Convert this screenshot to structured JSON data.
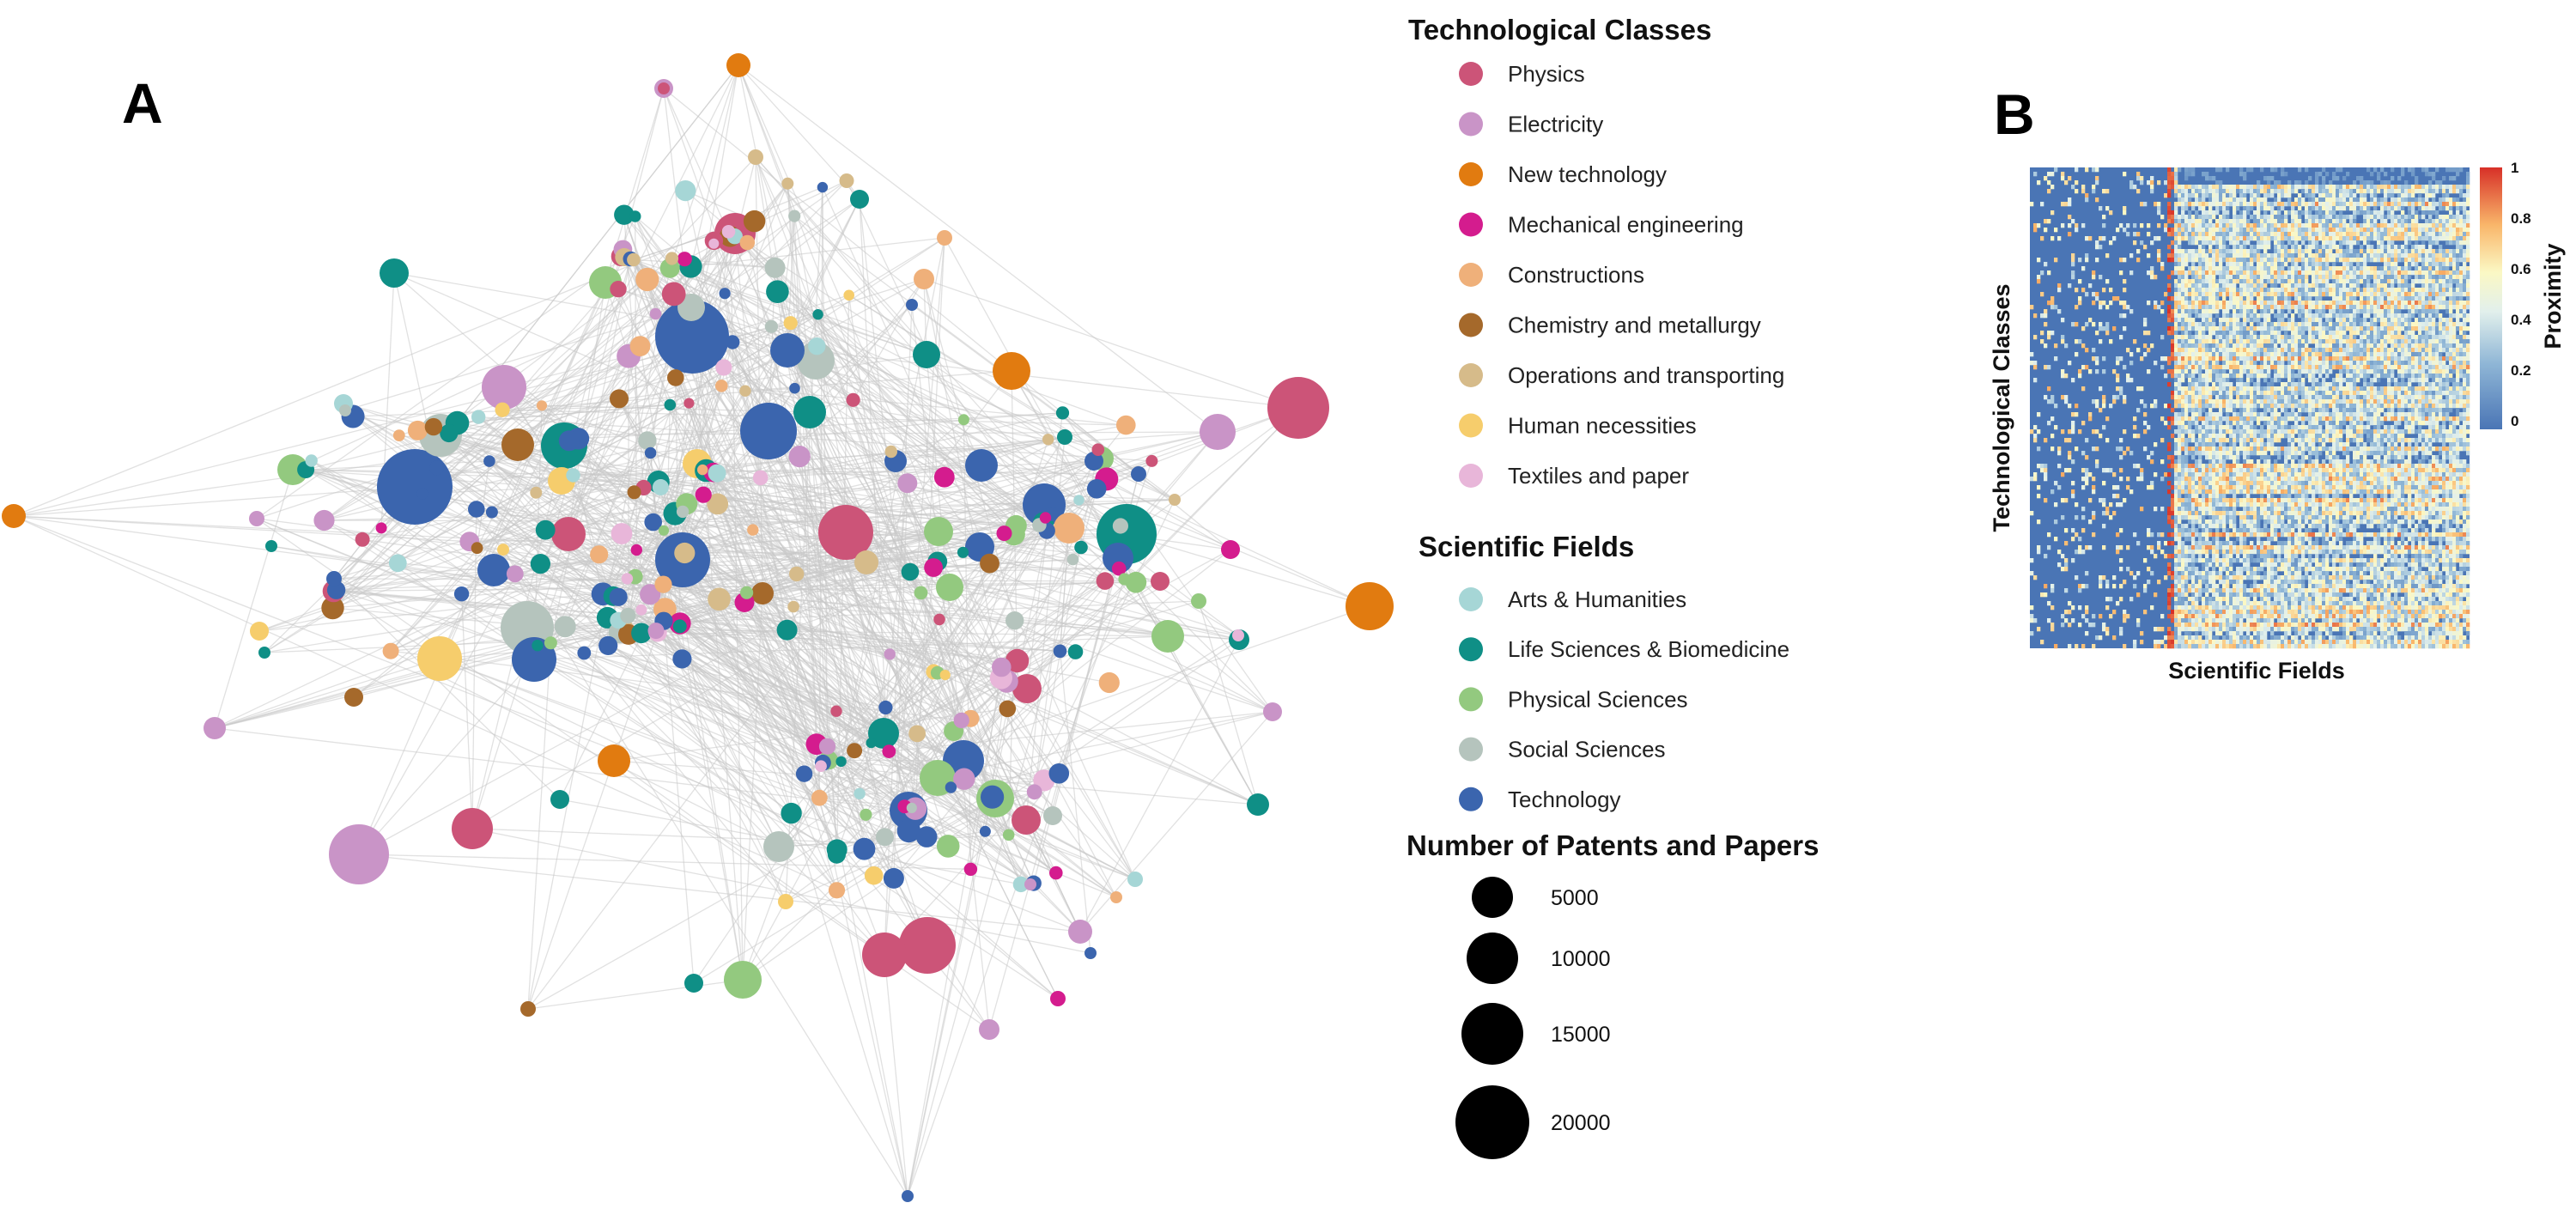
{
  "panels": {
    "a_letter": "A",
    "b_letter": "B"
  },
  "legend": {
    "tech_title": "Technological Classes",
    "tech_items": [
      {
        "label": "Physics",
        "color": "#cc5478"
      },
      {
        "label": "Electricity",
        "color": "#c994c7"
      },
      {
        "label": "New technology",
        "color": "#e17b10"
      },
      {
        "label": "Mechanical engineering",
        "color": "#d41c8e"
      },
      {
        "label": "Constructions",
        "color": "#efb07a"
      },
      {
        "label": "Chemistry and metallurgy",
        "color": "#a5692b"
      },
      {
        "label": "Operations and transporting",
        "color": "#d6bb8a"
      },
      {
        "label": "Human necessities",
        "color": "#f6cd6c"
      },
      {
        "label": "Textiles and paper",
        "color": "#e8b6d9"
      }
    ],
    "sci_title": "Scientific Fields",
    "sci_items": [
      {
        "label": "Arts & Humanities",
        "color": "#a6d6d6"
      },
      {
        "label": "Life Sciences & Biomedicine",
        "color": "#0f8f86"
      },
      {
        "label": "Physical Sciences",
        "color": "#93c97f"
      },
      {
        "label": "Social Sciences",
        "color": "#b5c4bd"
      },
      {
        "label": "Technology",
        "color": "#3b65ae"
      }
    ],
    "size_title": "Number of Patents and Papers",
    "size_items": [
      "5000",
      "10000",
      "15000",
      "20000"
    ]
  },
  "heatmap": {
    "ylabel": "Technological Classes",
    "xlabel": "Scientific Fields",
    "colorbar_label": "Proximity",
    "colorbar_ticks": [
      "1",
      "0.8",
      "0.6",
      "0.4",
      "0.2",
      "0"
    ],
    "color_low": "#4a75b5",
    "color_mid": "#fbf8c4",
    "color_high": "#d73027"
  }
}
